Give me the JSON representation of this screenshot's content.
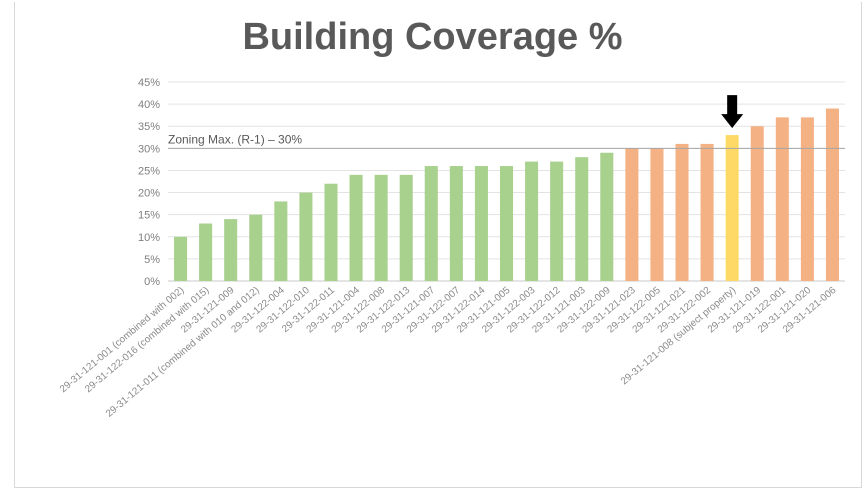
{
  "chart_data": {
    "type": "bar",
    "title": "Building Coverage %",
    "xlabel": "",
    "ylabel": "",
    "ylim": [
      0,
      45
    ],
    "y_ticks": [
      "0%",
      "5%",
      "10%",
      "15%",
      "20%",
      "25%",
      "30%",
      "35%",
      "40%",
      "45%"
    ],
    "grid": true,
    "legend": "none",
    "categories": [
      "29-31-121-001 (combined with 002)",
      "29-31-122-016 (combined with 015)",
      "29-31-121-009",
      "29-31-121-011 (combined with 010 and 012)",
      "29-31-122-004",
      "29-31-122-010",
      "29-31-122-011",
      "29-31-121-004",
      "29-31-122-008",
      "29-31-122-013",
      "29-31-121-007",
      "29-31-122-007",
      "29-31-122-014",
      "29-31-121-005",
      "29-31-122-003",
      "29-31-122-012",
      "29-31-121-003",
      "29-31-122-009",
      "29-31-121-023",
      "29-31-122-005",
      "29-31-121-021",
      "29-31-122-002",
      "29-31-121-008 (subject property)",
      "29-31-121-019",
      "29-31-122-001",
      "29-31-121-020",
      "29-31-121-006"
    ],
    "values": [
      10,
      13,
      14,
      15,
      18,
      20,
      22,
      24,
      24,
      24,
      26,
      26,
      26,
      26,
      27,
      27,
      28,
      29,
      30,
      30,
      31,
      31,
      33,
      35,
      37,
      37,
      39
    ],
    "bar_colors": {
      "below": "#a9d18e",
      "above": "#f4b183",
      "subject": "#ffd966"
    },
    "subject_index": 22,
    "reference_line": {
      "value": 30,
      "label": "Zoning Max. (R-1) – 30%",
      "color": "#a6a6a6"
    },
    "annotations": [
      {
        "type": "arrow",
        "target_index": 22,
        "icon": "down-arrow-icon",
        "color": "#000000"
      }
    ]
  }
}
